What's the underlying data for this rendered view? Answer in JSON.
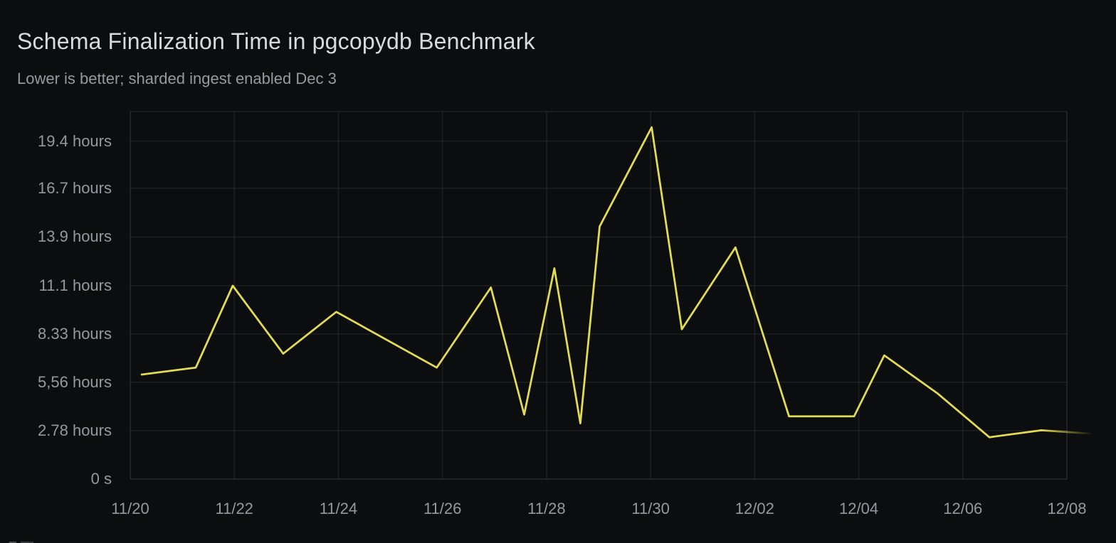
{
  "page": {
    "background": "#0c0d0f",
    "text_primary": "#d9dadd",
    "text_secondary": "#96989f"
  },
  "header": {
    "title": "Schema Finalization Time in pgcopydb Benchmark",
    "subtitle": "Lower is better; sharded ingest enabled Dec 3"
  },
  "chart_data": {
    "type": "line",
    "title": "Schema Finalization Time in pgcopydb Benchmark",
    "subtitle": "Lower is better; sharded ingest enabled Dec 3",
    "unit": "hours",
    "grid": true,
    "legend_position": "none",
    "line_color": "#e3dc52",
    "x_tick_labels": [
      "11/20",
      "11/22",
      "11/24",
      "11/26",
      "11/28",
      "11/30",
      "12/02",
      "12/04",
      "12/06",
      "12/08"
    ],
    "y_tick_labels": [
      "0 s",
      "2.78 hours",
      "5,56 hours",
      "8.33 hours",
      "11.1 hours",
      "13.9 hours",
      "16.7 hours",
      "19.4 hours"
    ],
    "y_tick_hours": [
      0,
      2.78,
      5.56,
      8.33,
      11.1,
      13.9,
      16.7,
      19.4
    ],
    "y_max_hours": 21.1,
    "x_days_total": 18,
    "x_days_per_tick": 2,
    "series": [
      {
        "fade_out_tail": true,
        "points": [
          {
            "date": "11/20",
            "day": 0.22,
            "hours": 6.0
          },
          {
            "date": "11/21",
            "day": 1.26,
            "hours": 6.4
          },
          {
            "date": "11/22",
            "day": 1.97,
            "hours": 11.1
          },
          {
            "date": "11/23",
            "day": 2.94,
            "hours": 7.2
          },
          {
            "date": "11/24",
            "day": 3.96,
            "hours": 9.6
          },
          {
            "date": "11/26",
            "day": 5.89,
            "hours": 6.4
          },
          {
            "date": "11/27",
            "day": 6.93,
            "hours": 11.0
          },
          {
            "date": "11/27",
            "day": 7.57,
            "hours": 3.7
          },
          {
            "date": "11/28",
            "day": 8.15,
            "hours": 12.1
          },
          {
            "date": "11/28",
            "day": 8.65,
            "hours": 3.2
          },
          {
            "date": "11/29",
            "day": 9.02,
            "hours": 14.5
          },
          {
            "date": "11/30",
            "day": 10.02,
            "hours": 20.2
          },
          {
            "date": "11/30",
            "day": 10.6,
            "hours": 8.6
          },
          {
            "date": "12/01",
            "day": 11.63,
            "hours": 13.3
          },
          {
            "date": "12/02",
            "day": 12.66,
            "hours": 3.6
          },
          {
            "date": "12/04",
            "day": 13.91,
            "hours": 3.6
          },
          {
            "date": "12/04",
            "day": 14.49,
            "hours": 7.1
          },
          {
            "date": "12/05",
            "day": 15.52,
            "hours": 4.9
          },
          {
            "date": "12/06",
            "day": 16.51,
            "hours": 2.4
          },
          {
            "date": "12/07",
            "day": 17.51,
            "hours": 2.8
          },
          {
            "date": "12/08",
            "day": 18.49,
            "hours": 2.6
          }
        ]
      }
    ]
  }
}
